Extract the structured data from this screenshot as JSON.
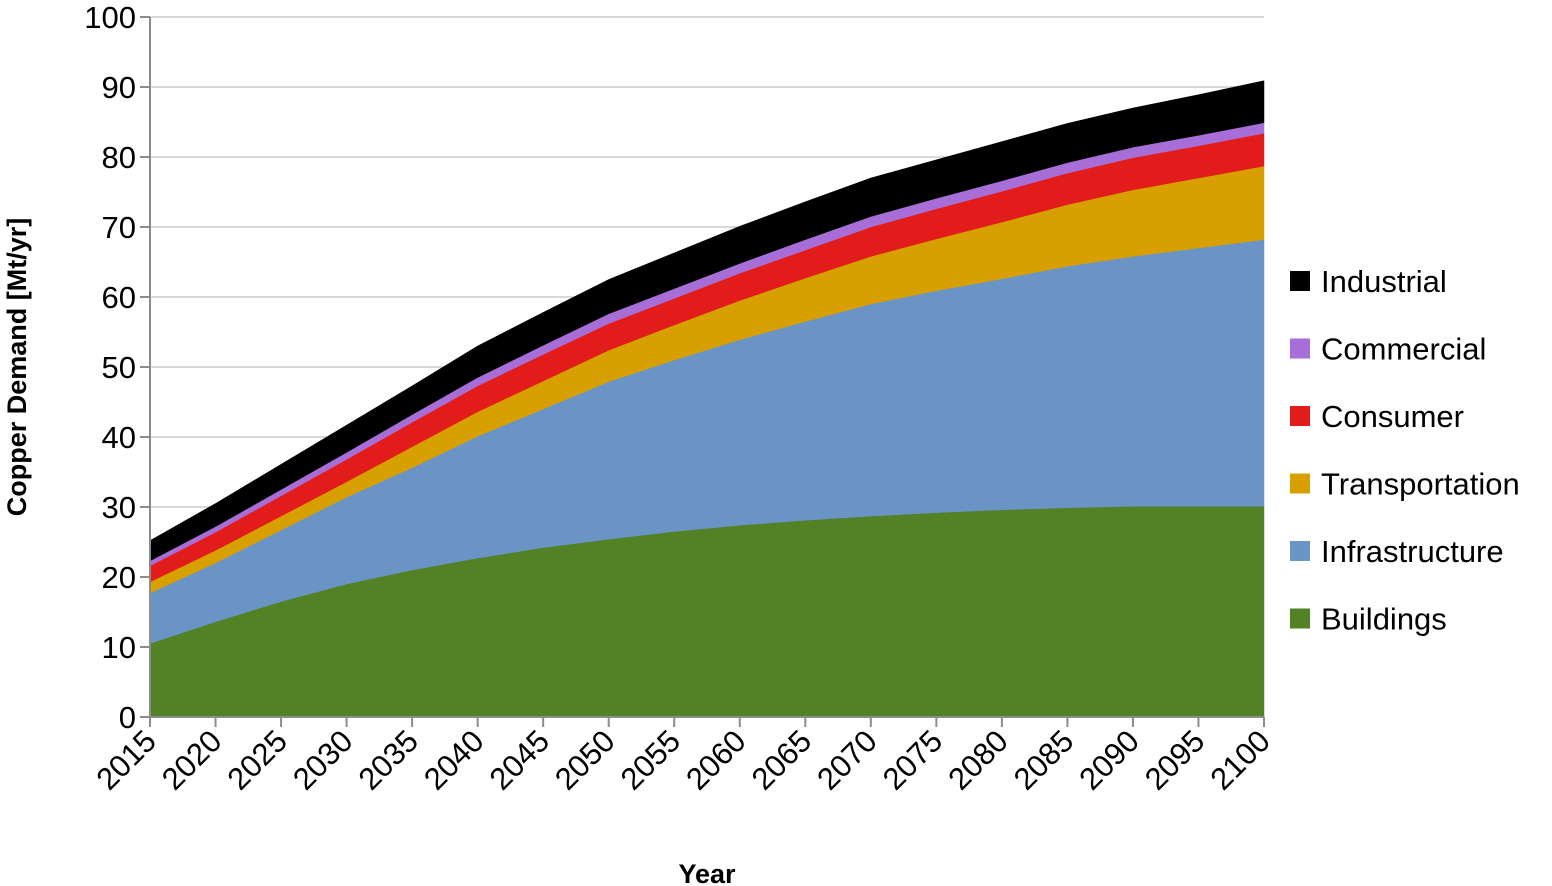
{
  "chart_data": {
    "type": "area",
    "stacked": true,
    "xlabel": "Year",
    "ylabel": "Copper Demand [Mt/yr]",
    "x": [
      2015,
      2020,
      2025,
      2030,
      2035,
      2040,
      2045,
      2050,
      2055,
      2060,
      2065,
      2070,
      2075,
      2080,
      2085,
      2090,
      2095,
      2100
    ],
    "ylim": [
      0,
      100
    ],
    "yticks": [
      "0",
      "10",
      "20",
      "30",
      "40",
      "50",
      "60",
      "70",
      "80",
      "90",
      "100"
    ],
    "xticks": [
      "2015",
      "2020",
      "2025",
      "2030",
      "2035",
      "2040",
      "2045",
      "2050",
      "2055",
      "2060",
      "2065",
      "2070",
      "2075",
      "2080",
      "2085",
      "2090",
      "2095",
      "2100"
    ],
    "grid": true,
    "legend_position": "right",
    "series": [
      {
        "name": "Buildings",
        "color": "#538125",
        "values": [
          10.5,
          13.6,
          16.5,
          19.0,
          21.0,
          22.7,
          24.2,
          25.4,
          26.5,
          27.4,
          28.1,
          28.7,
          29.2,
          29.6,
          29.9,
          30.1,
          30.1,
          30.1
        ]
      },
      {
        "name": "Infrastructure",
        "color": "#6a93c6",
        "values": [
          7.2,
          8.4,
          10.2,
          12.4,
          14.6,
          17.4,
          19.8,
          22.5,
          24.5,
          26.5,
          28.4,
          30.3,
          31.7,
          33.0,
          34.5,
          35.7,
          36.9,
          38.1
        ]
      },
      {
        "name": "Transportation",
        "color": "#d7a000",
        "values": [
          1.6,
          1.8,
          2.0,
          2.2,
          3.0,
          3.5,
          4.0,
          4.5,
          5.0,
          5.6,
          6.2,
          6.8,
          7.4,
          8.1,
          8.8,
          9.5,
          10.0,
          10.5
        ]
      },
      {
        "name": "Consumer",
        "color": "#e21b1b",
        "values": [
          2.3,
          2.6,
          2.9,
          3.2,
          3.5,
          3.7,
          3.8,
          3.8,
          3.8,
          3.9,
          4.0,
          4.2,
          4.3,
          4.4,
          4.5,
          4.6,
          4.6,
          4.7
        ]
      },
      {
        "name": "Commercial",
        "color": "#a86ed8",
        "values": [
          0.7,
          0.8,
          0.9,
          1.0,
          1.1,
          1.2,
          1.3,
          1.4,
          1.4,
          1.4,
          1.5,
          1.5,
          1.5,
          1.5,
          1.5,
          1.5,
          1.5,
          1.5
        ]
      },
      {
        "name": "Industrial",
        "color": "#000000",
        "values": [
          2.9,
          3.3,
          3.6,
          3.9,
          4.1,
          4.5,
          4.7,
          4.9,
          5.1,
          5.3,
          5.4,
          5.5,
          5.5,
          5.6,
          5.6,
          5.6,
          5.8,
          6.0
        ]
      }
    ]
  }
}
